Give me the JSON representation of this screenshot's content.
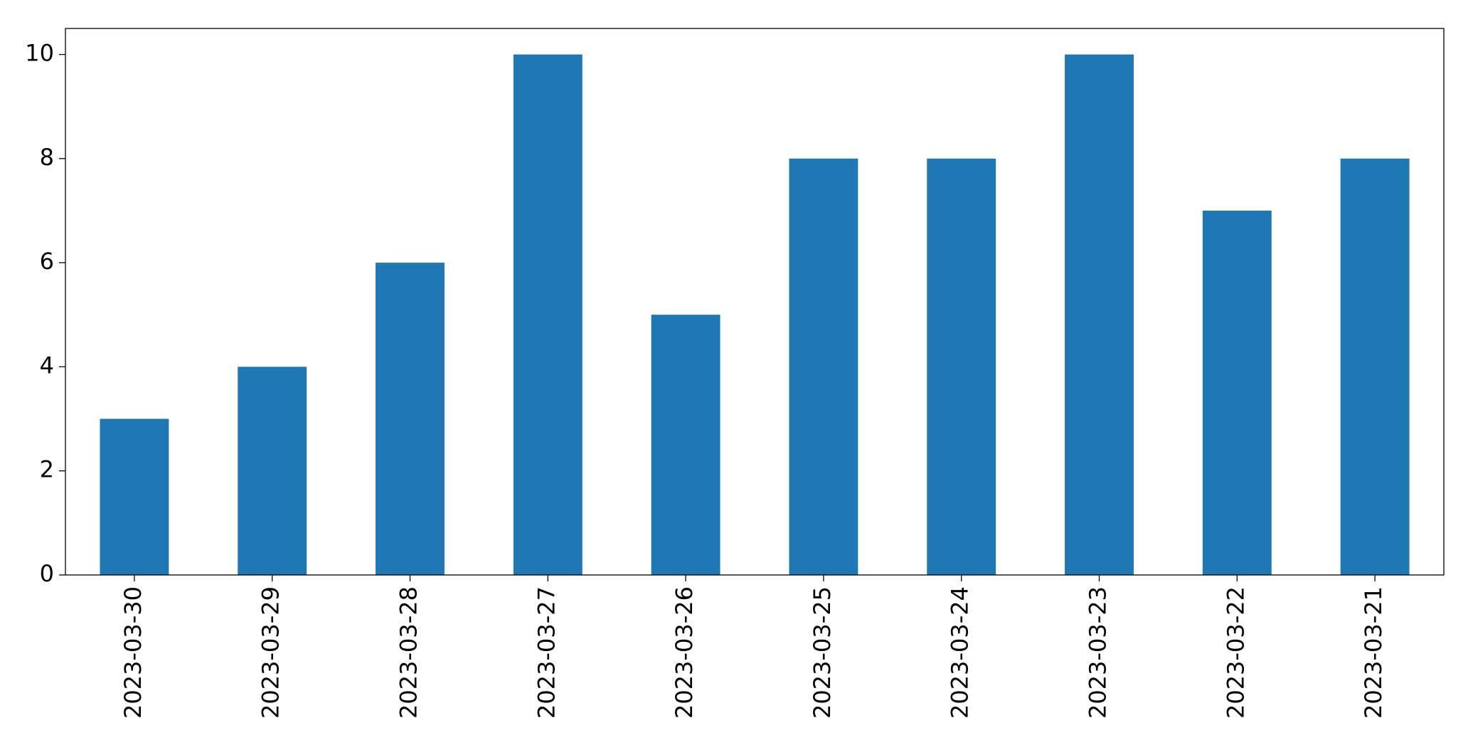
{
  "chart_data": {
    "type": "bar",
    "categories": [
      "2023-03-30",
      "2023-03-29",
      "2023-03-28",
      "2023-03-27",
      "2023-03-26",
      "2023-03-25",
      "2023-03-24",
      "2023-03-23",
      "2023-03-22",
      "2023-03-21"
    ],
    "values": [
      3,
      4,
      6,
      10,
      5,
      8,
      8,
      10,
      7,
      8
    ],
    "color": "#1f77b4",
    "ylim": [
      0,
      10.5
    ],
    "yticks": [
      0,
      2,
      4,
      6,
      8,
      10
    ],
    "grid": false
  }
}
